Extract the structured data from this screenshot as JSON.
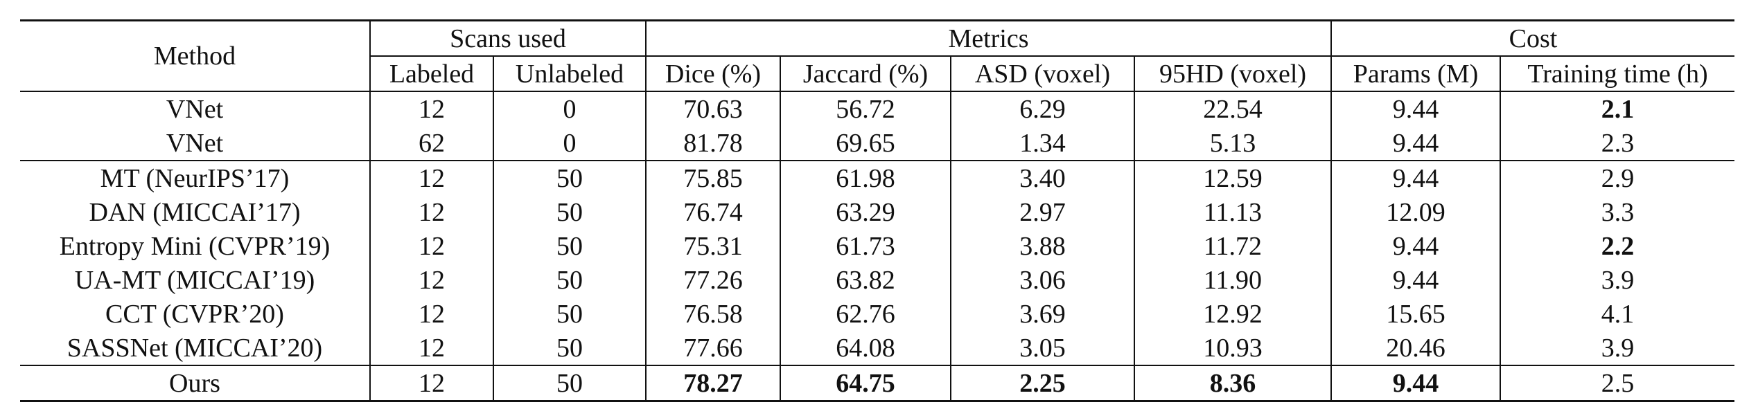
{
  "header": {
    "top": [
      "Method",
      "Scans used",
      "Metrics",
      "Cost"
    ],
    "sub": [
      "Labeled",
      "Unlabeled",
      "Dice (%)",
      "Jaccard (%)",
      "ASD (voxel)",
      "95HD (voxel)",
      "Params (M)",
      "Training time (h)"
    ]
  },
  "groups": [
    {
      "rows": [
        {
          "cells": [
            "VNet",
            "12",
            "0",
            "70.63",
            "56.72",
            "6.29",
            "22.54",
            "9.44",
            "2.1"
          ],
          "bold": [
            8
          ]
        },
        {
          "cells": [
            "VNet",
            "62",
            "0",
            "81.78",
            "69.65",
            "1.34",
            "5.13",
            "9.44",
            "2.3"
          ],
          "bold": []
        }
      ]
    },
    {
      "rows": [
        {
          "cells": [
            "MT (NeurIPS’17)",
            "12",
            "50",
            "75.85",
            "61.98",
            "3.40",
            "12.59",
            "9.44",
            "2.9"
          ],
          "bold": []
        },
        {
          "cells": [
            "DAN (MICCAI’17)",
            "12",
            "50",
            "76.74",
            "63.29",
            "2.97",
            "11.13",
            "12.09",
            "3.3"
          ],
          "bold": []
        },
        {
          "cells": [
            "Entropy Mini (CVPR’19)",
            "12",
            "50",
            "75.31",
            "61.73",
            "3.88",
            "11.72",
            "9.44",
            "2.2"
          ],
          "bold": [
            8
          ]
        },
        {
          "cells": [
            "UA-MT (MICCAI’19)",
            "12",
            "50",
            "77.26",
            "63.82",
            "3.06",
            "11.90",
            "9.44",
            "3.9"
          ],
          "bold": []
        },
        {
          "cells": [
            "CCT (CVPR’20)",
            "12",
            "50",
            "76.58",
            "62.76",
            "3.69",
            "12.92",
            "15.65",
            "4.1"
          ],
          "bold": []
        },
        {
          "cells": [
            "SASSNet (MICCAI’20)",
            "12",
            "50",
            "77.66",
            "64.08",
            "3.05",
            "10.93",
            "20.46",
            "3.9"
          ],
          "bold": []
        }
      ]
    },
    {
      "rows": [
        {
          "cells": [
            "Ours",
            "12",
            "50",
            "78.27",
            "64.75",
            "2.25",
            "8.36",
            "9.44",
            "2.5"
          ],
          "bold": [
            3,
            4,
            5,
            6,
            7
          ]
        }
      ]
    }
  ]
}
